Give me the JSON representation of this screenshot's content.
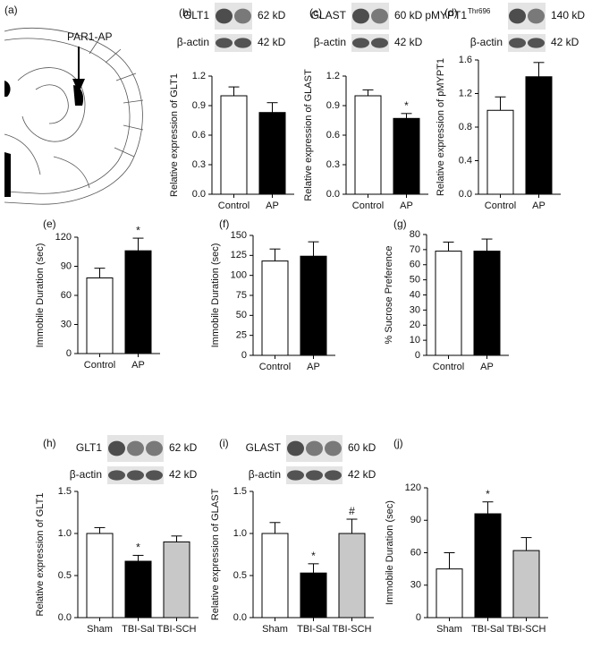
{
  "panel_a": {
    "panel": "(a)",
    "label": "PAR1-AP"
  },
  "chart_data": [
    {
      "panel": "(b)",
      "type": "bar",
      "ylabel": "Relative expression of GLT1",
      "blots": [
        {
          "protein": "GLT1",
          "size": "62 kD"
        },
        {
          "protein": "β-actin",
          "size": "42 kD"
        }
      ],
      "categories": [
        "Control",
        "AP"
      ],
      "values": [
        1.0,
        0.83
      ],
      "errors": [
        0.09,
        0.1
      ],
      "colors": [
        "#ffffff",
        "#000000"
      ],
      "ylim": [
        0,
        1.2
      ],
      "yticks": [
        {
          "value": 0,
          "label": "0.0"
        },
        0.3,
        0.6,
        0.9,
        1.2
      ]
    },
    {
      "panel": "(c)",
      "type": "bar",
      "ylabel": "Relative expression of GLAST",
      "blots": [
        {
          "protein": "GLAST",
          "size": "60 kD"
        },
        {
          "protein": "β-actin",
          "size": "42 kD"
        }
      ],
      "categories": [
        "Control",
        "AP"
      ],
      "values": [
        1.0,
        0.77
      ],
      "errors": [
        0.06,
        0.05
      ],
      "colors": [
        "#ffffff",
        "#000000"
      ],
      "annotations": [
        null,
        "*"
      ],
      "ylim": [
        0,
        1.2
      ],
      "yticks": [
        {
          "value": 0,
          "label": "0.0"
        },
        0.3,
        0.6,
        0.9,
        1.2
      ]
    },
    {
      "panel": "(d)",
      "type": "bar",
      "ylabel": "Relative expression of pMYPT1",
      "blots": [
        {
          "protein": "pMYPT1",
          "superscript": "Thr696",
          "size": "140 kD"
        },
        {
          "protein": "β-actin",
          "size": "42 kD"
        }
      ],
      "categories": [
        "Control",
        "AP"
      ],
      "values": [
        1.0,
        1.4
      ],
      "errors": [
        0.16,
        0.17
      ],
      "colors": [
        "#ffffff",
        "#000000"
      ],
      "ylim": [
        0,
        1.6
      ],
      "yticks": [
        {
          "value": 0,
          "label": "0.0"
        },
        0.4,
        0.8,
        1.2,
        1.6
      ]
    },
    {
      "panel": "(e)",
      "type": "bar",
      "ylabel": "Immobile Duration (sec)",
      "categories": [
        "Control",
        "AP"
      ],
      "values": [
        78,
        106
      ],
      "errors": [
        10,
        13
      ],
      "colors": [
        "#ffffff",
        "#000000"
      ],
      "annotations": [
        null,
        "*"
      ],
      "ylim": [
        0,
        120
      ],
      "yticks": [
        0,
        30,
        60,
        90,
        120
      ]
    },
    {
      "panel": "(f)",
      "type": "bar",
      "ylabel": "Immobile Duration (sec)",
      "categories": [
        "Control",
        "AP"
      ],
      "values": [
        118,
        124
      ],
      "errors": [
        15,
        18
      ],
      "colors": [
        "#ffffff",
        "#000000"
      ],
      "ylim": [
        0,
        150
      ],
      "yticks": [
        0,
        25,
        50,
        75,
        100,
        125,
        150
      ]
    },
    {
      "panel": "(g)",
      "type": "bar",
      "ylabel": "% Sucrose Preference",
      "categories": [
        "Control",
        "AP"
      ],
      "values": [
        69,
        69
      ],
      "errors": [
        6,
        8
      ],
      "colors": [
        "#ffffff",
        "#000000"
      ],
      "ylim": [
        0,
        80
      ],
      "yticks": [
        0,
        10,
        20,
        30,
        40,
        50,
        60,
        70,
        80
      ]
    },
    {
      "panel": "(h)",
      "type": "bar",
      "ylabel": "Relative expression of GLT1",
      "blots": [
        {
          "protein": "GLT1",
          "size": "62 kD"
        },
        {
          "protein": "β-actin",
          "size": "42 kD"
        }
      ],
      "categories": [
        "Sham",
        "TBI-Sal",
        "TBI-SCH"
      ],
      "values": [
        1.0,
        0.67,
        0.9
      ],
      "errors": [
        0.07,
        0.07,
        0.07
      ],
      "colors": [
        "#ffffff",
        "#000000",
        "#c8c8c8"
      ],
      "annotations": [
        null,
        "*",
        null
      ],
      "ylim": [
        0,
        1.5
      ],
      "yticks": [
        {
          "value": 0,
          "label": "0.0"
        },
        0.5,
        {
          "value": 1,
          "label": "1.0"
        },
        1.5
      ]
    },
    {
      "panel": "(i)",
      "type": "bar",
      "ylabel": "Relative expression of GLAST",
      "blots": [
        {
          "protein": "GLAST",
          "size": "60 kD"
        },
        {
          "protein": "β-actin",
          "size": "42 kD"
        }
      ],
      "categories": [
        "Sham",
        "TBI-Sal",
        "TBI-SCH"
      ],
      "values": [
        1.0,
        0.53,
        1.0
      ],
      "errors": [
        0.13,
        0.11,
        0.17
      ],
      "colors": [
        "#ffffff",
        "#000000",
        "#c8c8c8"
      ],
      "annotations": [
        null,
        "*",
        "#"
      ],
      "ylim": [
        0,
        1.5
      ],
      "yticks": [
        {
          "value": 0,
          "label": "0.0"
        },
        0.5,
        {
          "value": 1,
          "label": "1.0"
        },
        1.5
      ]
    },
    {
      "panel": "(j)",
      "type": "bar",
      "ylabel": "Immobile Duration (sec)",
      "categories": [
        "Sham",
        "TBI-Sal",
        "TBI-SCH"
      ],
      "values": [
        45,
        96,
        62
      ],
      "errors": [
        15,
        11,
        12
      ],
      "colors": [
        "#ffffff",
        "#000000",
        "#c8c8c8"
      ],
      "annotations": [
        null,
        "*",
        null
      ],
      "ylim": [
        0,
        120
      ],
      "yticks": [
        0,
        30,
        60,
        90,
        120
      ]
    }
  ]
}
